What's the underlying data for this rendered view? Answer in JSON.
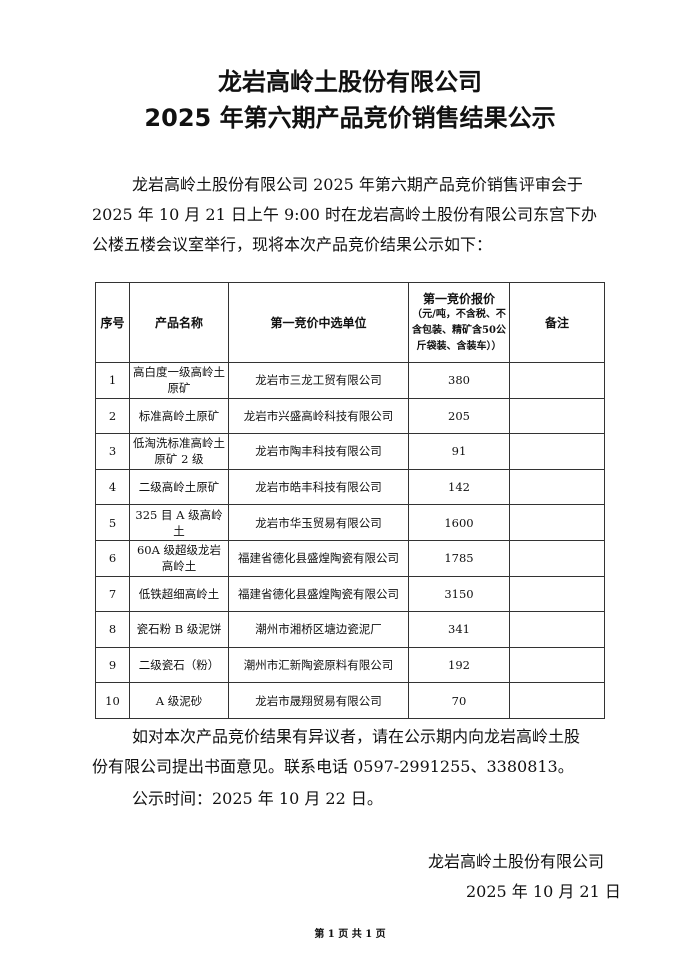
{
  "title_line1": "龙岩高岭土股份有限公司",
  "title_line2": "2025 年第六期产品竞价销售结果公示",
  "intro_line1": "龙岩高岭土股份有限公司 2025 年第六期产品竞价销售评审会于",
  "intro_line2": "2025 年 10 月 21 日上午 9:00 时在龙岩高岭土股份有限公司东宫下办",
  "intro_line3": "公楼五楼会议室举行，现将本次产品竞价结果公示如下：",
  "table": {
    "headers": [
      "序号",
      "产品名称",
      "第一竞价中选单位",
      "第一竞价报价",
      "备注"
    ],
    "price_note": "（元/吨，不含税、不含包装、精矿含50公斤袋装、含装车））",
    "rows": [
      {
        "no": "1",
        "product": "高白度一级高岭土原矿",
        "winner": "龙岩市三龙工贸有限公司",
        "price": "380",
        "remark": ""
      },
      {
        "no": "2",
        "product": "标准高岭土原矿",
        "winner": "龙岩市兴盛高岭科技有限公司",
        "price": "205",
        "remark": ""
      },
      {
        "no": "3",
        "product": "低淘洗标准高岭土原矿 2 级",
        "winner": "龙岩市陶丰科技有限公司",
        "price": "91",
        "remark": ""
      },
      {
        "no": "4",
        "product": "二级高岭土原矿",
        "winner": "龙岩市皓丰科技有限公司",
        "price": "142",
        "remark": ""
      },
      {
        "no": "5",
        "product": "325 目 A 级高岭土",
        "winner": "龙岩市华玉贸易有限公司",
        "price": "1600",
        "remark": ""
      },
      {
        "no": "6",
        "product": "60A 级超级龙岩高岭土",
        "winner": "福建省德化县盛煌陶瓷有限公司",
        "price": "1785",
        "remark": ""
      },
      {
        "no": "7",
        "product": "低铁超细高岭土",
        "winner": "福建省德化县盛煌陶瓷有限公司",
        "price": "3150",
        "remark": ""
      },
      {
        "no": "8",
        "product": "瓷石粉 B 级泥饼",
        "winner": "潮州市湘桥区塘边瓷泥厂",
        "price": "341",
        "remark": ""
      },
      {
        "no": "9",
        "product": "二级瓷石（粉）",
        "winner": "潮州市汇新陶瓷原料有限公司",
        "price": "192",
        "remark": ""
      },
      {
        "no": "10",
        "product": "A 级泥砂",
        "winner": "龙岩市晟翔贸易有限公司",
        "price": "70",
        "remark": ""
      }
    ]
  },
  "objection_line1": "如对本次产品竞价结果有异议者，请在公示期内向龙岩高岭土股",
  "objection_line2": "份有限公司提出书面意见。联系电话 0597-2991255、3380813。",
  "notice_time": "公示时间：2025 年 10 月 22 日。",
  "signature_company": "龙岩高岭土股份有限公司",
  "signature_date": "2025 年 10 月 21 日",
  "footer": "第 1 页 共 1 页"
}
